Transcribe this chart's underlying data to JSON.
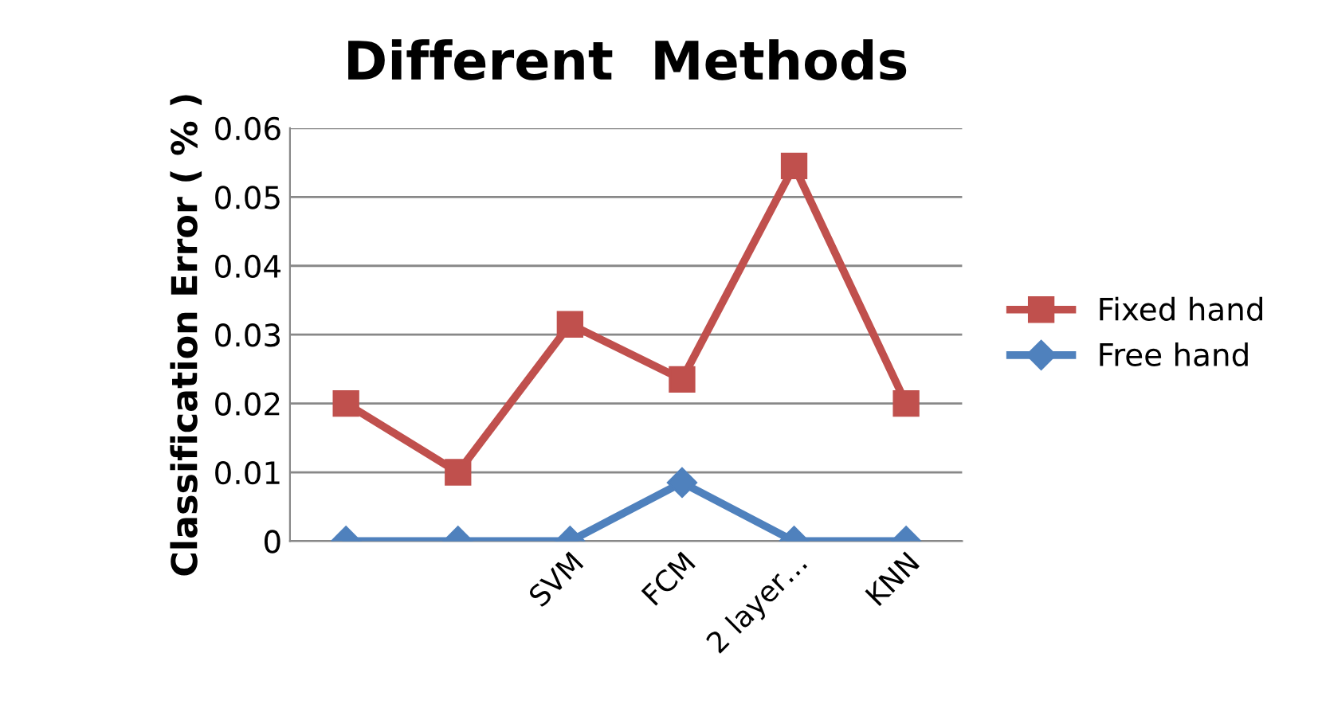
{
  "chart_data": {
    "type": "line",
    "title": "Different  Methods",
    "ylabel": "Classification Error ( % )",
    "categories": [
      null,
      null,
      "SVM",
      "FCM",
      "2 layer…",
      "KNN"
    ],
    "series": [
      {
        "name": "Fixed hand",
        "color": "#c0504d",
        "marker": "square",
        "values": [
          0.02,
          0.01,
          0.0315,
          0.0235,
          0.0545,
          0.02
        ]
      },
      {
        "name": "Free hand",
        "color": "#4f81bd",
        "marker": "diamond",
        "values": [
          0,
          0,
          0,
          0.0085,
          0,
          0
        ]
      }
    ],
    "ylim": [
      0,
      0.06
    ],
    "yticks": [
      {
        "value": 0,
        "label": "0"
      },
      0.01,
      0.02,
      0.03,
      0.04,
      0.05,
      0.06
    ],
    "grid": "y",
    "legend": "right",
    "line_style": "solid"
  }
}
